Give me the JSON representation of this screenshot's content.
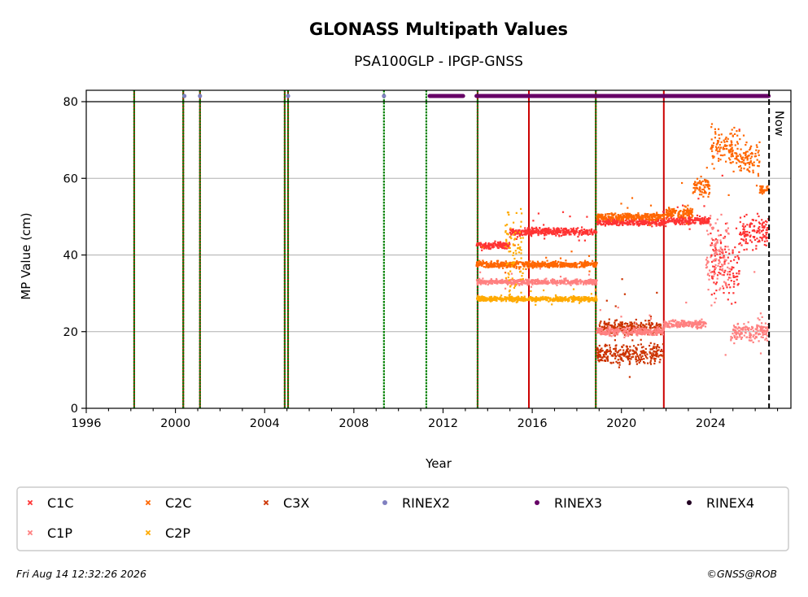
{
  "chart_data": {
    "type": "scatter",
    "title": "GLONASS Multipath Values",
    "subtitle": "PSA100GLP - IPGP-GNSS",
    "xlabel": "Year",
    "ylabel": "MP Value (cm)",
    "xlim": [
      1996,
      2027.6
    ],
    "ylim": [
      0,
      80
    ],
    "x_ticks": [
      "1996",
      "2000",
      "2004",
      "2008",
      "2012",
      "2016",
      "2020",
      "2024"
    ],
    "y_ticks": [
      "0",
      "20",
      "40",
      "60",
      "80"
    ],
    "grid": "horizontal",
    "now_label": "Now",
    "now_year": 2026.62,
    "legend_position": "bottom",
    "legend": [
      {
        "label": "C1C",
        "color": "#ff3333",
        "marker": "x"
      },
      {
        "label": "C2C",
        "color": "#ff6600",
        "marker": "x"
      },
      {
        "label": "C3X",
        "color": "#cc3300",
        "marker": "x"
      },
      {
        "label": "RINEX2",
        "color": "#8080c0",
        "marker": "dot"
      },
      {
        "label": "RINEX3",
        "color": "#660066",
        "marker": "dot"
      },
      {
        "label": "RINEX4",
        "color": "#220022",
        "marker": "dot"
      },
      {
        "label": "C1P",
        "color": "#ff8080",
        "marker": "x"
      },
      {
        "label": "C2P",
        "color": "#ffaa00",
        "marker": "x"
      }
    ],
    "green_dotted_lines": [
      1998.15,
      2000.35,
      2001.1,
      2004.9,
      2005.05,
      2009.35,
      2011.25,
      2013.55,
      2018.85
    ],
    "red_lines": [
      1998.15,
      2000.35,
      2001.1,
      2004.9,
      2005.05,
      2013.55,
      2015.85,
      2018.85,
      2021.9
    ],
    "rinex2_points": [
      2000.4,
      2001.1,
      2005.05,
      2009.35
    ],
    "rinex3_segments": [
      [
        2011.4,
        2012.9
      ],
      [
        2013.5,
        2026.6
      ]
    ],
    "series": [
      {
        "name": "C1C",
        "color": "#ff3333",
        "segments": [
          {
            "x": [
              2013.5,
              2015.0
            ],
            "level": 42.5,
            "spread": 1.2
          },
          {
            "x": [
              2015.0,
              2018.9
            ],
            "level": 46.0,
            "spread": 1.5
          },
          {
            "x": [
              2018.9,
              2022.0
            ],
            "level": 48.5,
            "spread": 1.2
          },
          {
            "x": [
              2022.0,
              2024.0
            ],
            "level": 49.0,
            "spread": 1.5
          },
          {
            "x": [
              2024.0,
              2025.3
            ],
            "level": 38.0,
            "spread": 12.0
          },
          {
            "x": [
              2025.3,
              2026.6
            ],
            "level": 46.0,
            "spread": 6.0
          }
        ]
      },
      {
        "name": "C2C",
        "color": "#ff6600",
        "segments": [
          {
            "x": [
              2013.5,
              2018.9
            ],
            "level": 37.5,
            "spread": 1.2
          },
          {
            "x": [
              2018.9,
              2021.9
            ],
            "level": 50.0,
            "spread": 1.3
          },
          {
            "x": [
              2021.9,
              2023.2
            ],
            "level": 51.0,
            "spread": 2.0
          },
          {
            "x": [
              2023.2,
              2024.0
            ],
            "level": 58.0,
            "spread": 4.0
          },
          {
            "x": [
              2024.0,
              2025.3
            ],
            "level": 68.0,
            "spread": 8.0
          },
          {
            "x": [
              2025.3,
              2026.2
            ],
            "level": 65.0,
            "spread": 6.0
          },
          {
            "x": [
              2026.2,
              2026.6
            ],
            "level": 57.0,
            "spread": 1.5
          }
        ]
      },
      {
        "name": "C3X",
        "color": "#cc3300",
        "segments": [
          {
            "x": [
              2018.9,
              2021.9
            ],
            "level": 14.0,
            "spread": 3.5
          },
          {
            "x": [
              2019.0,
              2021.8
            ],
            "level": 21.0,
            "spread": 3.0
          }
        ]
      },
      {
        "name": "C1P",
        "color": "#ff8080",
        "segments": [
          {
            "x": [
              2013.5,
              2018.9
            ],
            "level": 33.0,
            "spread": 1.0
          },
          {
            "x": [
              2018.9,
              2021.9
            ],
            "level": 20.0,
            "spread": 1.5
          },
          {
            "x": [
              2021.9,
              2023.8
            ],
            "level": 22.0,
            "spread": 1.5
          },
          {
            "x": [
              2023.8,
              2024.9
            ],
            "level": 40.0,
            "spread": 15.0
          },
          {
            "x": [
              2024.9,
              2026.6
            ],
            "level": 20.0,
            "spread": 4.0
          }
        ]
      },
      {
        "name": "C2P",
        "color": "#ffaa00",
        "segments": [
          {
            "x": [
              2013.5,
              2018.9
            ],
            "level": 28.5,
            "spread": 0.9
          },
          {
            "x": [
              2014.8,
              2015.6
            ],
            "level": 40.0,
            "spread": 15.0
          }
        ]
      }
    ]
  },
  "footer": {
    "timestamp": "Fri Aug 14 12:32:26 2026",
    "credit": "©GNSS@ROB"
  }
}
